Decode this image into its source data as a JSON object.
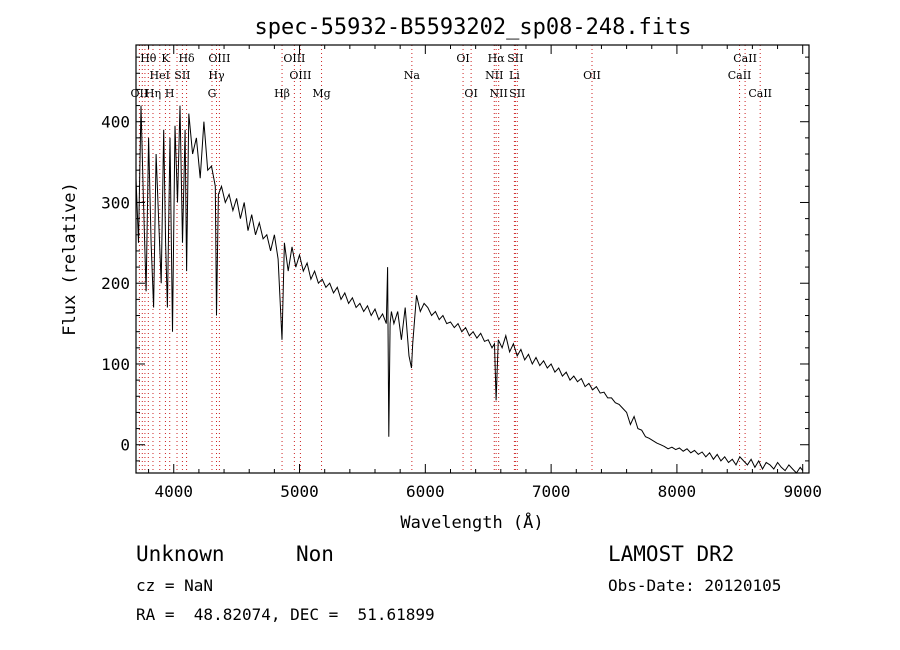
{
  "chart_data": {
    "type": "line",
    "title": "spec-55932-B5593202_sp08-248.fits",
    "xlabel": "Wavelength (Å)",
    "ylabel": "Flux (relative)",
    "xlim": [
      3700,
      9050
    ],
    "ylim": [
      -35,
      495
    ],
    "xticks": [
      4000,
      5000,
      6000,
      7000,
      8000,
      9000
    ],
    "yticks": [
      0,
      100,
      200,
      300,
      400
    ],
    "grid": false,
    "line_color": "#000000",
    "marker_color": "#cc2222",
    "series": [
      {
        "x": [
          3700,
          3720,
          3740,
          3760,
          3780,
          3800,
          3820,
          3840,
          3860,
          3880,
          3900,
          3920,
          3935,
          3950,
          3970,
          3990,
          4010,
          4030,
          4050,
          4070,
          4090,
          4102,
          4120,
          4150,
          4180,
          4210,
          4240,
          4270,
          4300,
          4330,
          4340,
          4355,
          4380,
          4410,
          4440,
          4470,
          4500,
          4530,
          4560,
          4590,
          4620,
          4650,
          4680,
          4710,
          4740,
          4770,
          4800,
          4830,
          4861,
          4880,
          4910,
          4940,
          4970,
          5000,
          5030,
          5060,
          5090,
          5120,
          5150,
          5180,
          5210,
          5240,
          5270,
          5300,
          5330,
          5360,
          5390,
          5420,
          5450,
          5480,
          5510,
          5540,
          5570,
          5600,
          5630,
          5660,
          5690,
          5700,
          5710,
          5720,
          5730,
          5750,
          5780,
          5810,
          5840,
          5870,
          5890,
          5900,
          5930,
          5960,
          5990,
          6020,
          6050,
          6080,
          6110,
          6140,
          6170,
          6200,
          6230,
          6260,
          6290,
          6320,
          6350,
          6380,
          6410,
          6440,
          6470,
          6500,
          6530,
          6550,
          6563,
          6580,
          6610,
          6640,
          6670,
          6700,
          6730,
          6760,
          6790,
          6820,
          6850,
          6880,
          6910,
          6940,
          6970,
          7000,
          7030,
          7060,
          7090,
          7120,
          7150,
          7180,
          7210,
          7240,
          7270,
          7300,
          7330,
          7360,
          7390,
          7420,
          7450,
          7480,
          7510,
          7540,
          7570,
          7600,
          7630,
          7660,
          7690,
          7720,
          7750,
          7780,
          7810,
          7840,
          7870,
          7900,
          7930,
          7960,
          7990,
          8020,
          8050,
          8080,
          8110,
          8140,
          8170,
          8200,
          8230,
          8260,
          8290,
          8320,
          8350,
          8380,
          8410,
          8440,
          8470,
          8500,
          8530,
          8560,
          8590,
          8620,
          8650,
          8680,
          8710,
          8740,
          8770,
          8800,
          8830,
          8860,
          8890,
          8920,
          8950,
          8980,
          9000
        ],
        "y": [
          330,
          250,
          420,
          300,
          190,
          380,
          250,
          170,
          360,
          280,
          200,
          390,
          250,
          170,
          380,
          140,
          395,
          300,
          420,
          250,
          390,
          215,
          410,
          360,
          380,
          330,
          400,
          340,
          345,
          320,
          160,
          310,
          320,
          300,
          310,
          290,
          305,
          280,
          300,
          265,
          285,
          260,
          275,
          255,
          260,
          240,
          260,
          230,
          130,
          250,
          215,
          245,
          220,
          235,
          215,
          225,
          205,
          215,
          200,
          205,
          195,
          200,
          188,
          195,
          180,
          188,
          175,
          182,
          170,
          175,
          165,
          172,
          160,
          168,
          155,
          162,
          150,
          220,
          10,
          150,
          165,
          150,
          165,
          130,
          170,
          110,
          95,
          125,
          185,
          165,
          175,
          170,
          160,
          165,
          155,
          160,
          150,
          152,
          145,
          150,
          140,
          145,
          135,
          140,
          132,
          138,
          128,
          130,
          120,
          125,
          55,
          130,
          120,
          135,
          115,
          125,
          110,
          118,
          105,
          112,
          100,
          108,
          98,
          104,
          95,
          100,
          90,
          95,
          85,
          90,
          80,
          85,
          78,
          82,
          72,
          76,
          68,
          72,
          64,
          65,
          58,
          58,
          52,
          50,
          45,
          40,
          25,
          35,
          20,
          18,
          10,
          8,
          5,
          2,
          0,
          -2,
          -5,
          -3,
          -6,
          -4,
          -8,
          -5,
          -10,
          -7,
          -12,
          -9,
          -15,
          -10,
          -18,
          -12,
          -20,
          -15,
          -22,
          -18,
          -25,
          -15,
          -20,
          -25,
          -18,
          -28,
          -20,
          -30,
          -22,
          -25,
          -30,
          -22,
          -28,
          -32,
          -25,
          -30,
          -35,
          -28,
          -32
        ]
      }
    ],
    "lines": [
      {
        "label": "Hθ",
        "x": 3798,
        "row": 1
      },
      {
        "label": "K",
        "x": 3934,
        "row": 1
      },
      {
        "label": "Hδ",
        "x": 4102,
        "row": 1
      },
      {
        "label": "OIII",
        "x": 4363,
        "row": 1
      },
      {
        "label": "OIII",
        "x": 4959,
        "row": 1
      },
      {
        "label": "OI",
        "x": 6300,
        "row": 1
      },
      {
        "label": "Hα",
        "x": 6563,
        "row": 1
      },
      {
        "label": "SII",
        "x": 6716,
        "row": 1
      },
      {
        "label": "CaII",
        "x": 8542,
        "row": 1
      },
      {
        "label": "HeI",
        "x": 3889,
        "row": 2
      },
      {
        "label": "SII",
        "x": 4069,
        "row": 2
      },
      {
        "label": "Hγ",
        "x": 4340,
        "row": 2
      },
      {
        "label": "OIII",
        "x": 5007,
        "row": 2
      },
      {
        "label": "Na",
        "x": 5893,
        "row": 2
      },
      {
        "label": "NII",
        "x": 6548,
        "row": 2
      },
      {
        "label": "Li",
        "x": 6708,
        "row": 2
      },
      {
        "label": "OII",
        "x": 7325,
        "row": 2
      },
      {
        "label": "CaII",
        "x": 8498,
        "row": 2
      },
      {
        "label": "OII",
        "x": 3727,
        "row": 3
      },
      {
        "label": "Hη",
        "x": 3835,
        "row": 3
      },
      {
        "label": "H",
        "x": 3968,
        "row": 3
      },
      {
        "label": "G",
        "x": 4304,
        "row": 3
      },
      {
        "label": "Hβ",
        "x": 4861,
        "row": 3
      },
      {
        "label": "Mg",
        "x": 5175,
        "row": 3
      },
      {
        "label": "OI",
        "x": 6364,
        "row": 3
      },
      {
        "label": "NII",
        "x": 6583,
        "row": 3
      },
      {
        "label": "SII",
        "x": 6731,
        "row": 3
      },
      {
        "label": "CaII",
        "x": 8662,
        "row": 3
      },
      {
        "label": "",
        "x": 3771,
        "row": 0
      },
      {
        "label": "",
        "x": 3750,
        "row": 0
      },
      {
        "label": "",
        "x": 4026,
        "row": 0
      }
    ]
  },
  "info": {
    "object_class": "Unknown",
    "subclass": "Non",
    "survey": "LAMOST DR2",
    "cz": "cz = NaN",
    "obs_date": "Obs-Date: 20120105",
    "coords": "RA =  48.82074, DEC =  51.61899"
  }
}
